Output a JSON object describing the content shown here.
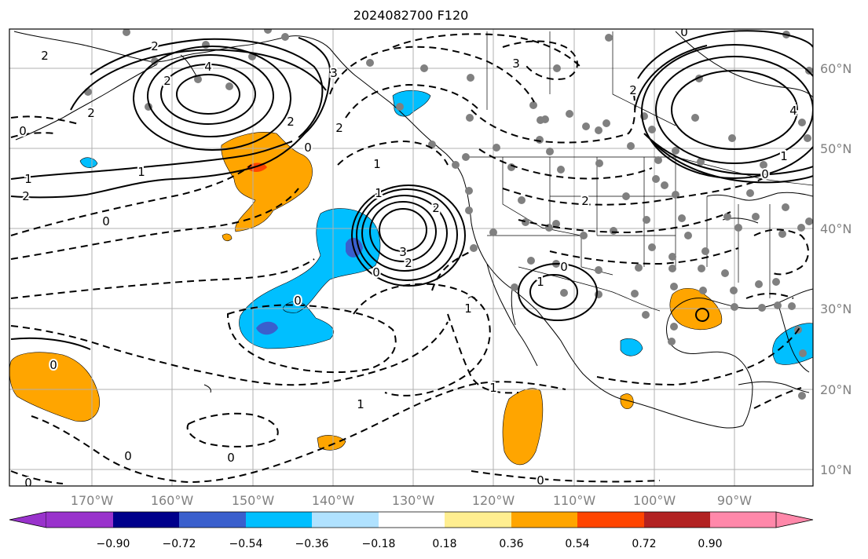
{
  "map": {
    "title": "2024082700 F120",
    "lon_labels": [
      "170°W",
      "160°W",
      "150°W",
      "140°W",
      "130°W",
      "120°W",
      "110°W",
      "100°W",
      "90°W"
    ],
    "lat_labels": [
      "60°N",
      "50°N",
      "40°N",
      "30°N",
      "20°N",
      "10°N"
    ],
    "colors": {
      "land_line": "#000000",
      "grid": "#b0b0b0",
      "tick_label": "#808080",
      "station_dot": "#808080"
    }
  },
  "colorbar": {
    "colors": [
      "#9932cc",
      "#00008b",
      "#3a5fcd",
      "#00bfff",
      "#b0e2ff",
      "#ffffff",
      "#ffee90",
      "#ffa500",
      "#ff4500",
      "#b22222",
      "#ff88aa"
    ],
    "tick_labels": [
      "−0.90",
      "−0.72",
      "−0.54",
      "−0.36",
      "−0.18",
      "0.18",
      "0.36",
      "0.54",
      "0.72",
      "0.90"
    ]
  },
  "contour_labels": [
    {
      "text": "2"
    },
    {
      "text": "4"
    },
    {
      "text": "2"
    },
    {
      "text": "2"
    },
    {
      "text": "0"
    },
    {
      "text": "1"
    },
    {
      "text": "1"
    },
    {
      "text": "2"
    },
    {
      "text": "0"
    },
    {
      "text": "2"
    },
    {
      "text": "2"
    },
    {
      "text": "0"
    },
    {
      "text": "3"
    },
    {
      "text": "2"
    },
    {
      "text": "1"
    },
    {
      "text": "3"
    },
    {
      "text": "2"
    },
    {
      "text": "0"
    },
    {
      "text": "0"
    },
    {
      "text": "1"
    },
    {
      "text": "2"
    },
    {
      "text": "3"
    },
    {
      "text": "2"
    },
    {
      "text": "0"
    },
    {
      "text": "2"
    },
    {
      "text": "4"
    },
    {
      "text": "0"
    },
    {
      "text": "1"
    },
    {
      "text": "1"
    },
    {
      "text": "1"
    },
    {
      "text": "1"
    },
    {
      "text": "0"
    },
    {
      "text": "0"
    },
    {
      "text": "1"
    },
    {
      "text": "0"
    },
    {
      "text": "0"
    },
    {
      "text": "0"
    },
    {
      "text": "0"
    }
  ]
}
